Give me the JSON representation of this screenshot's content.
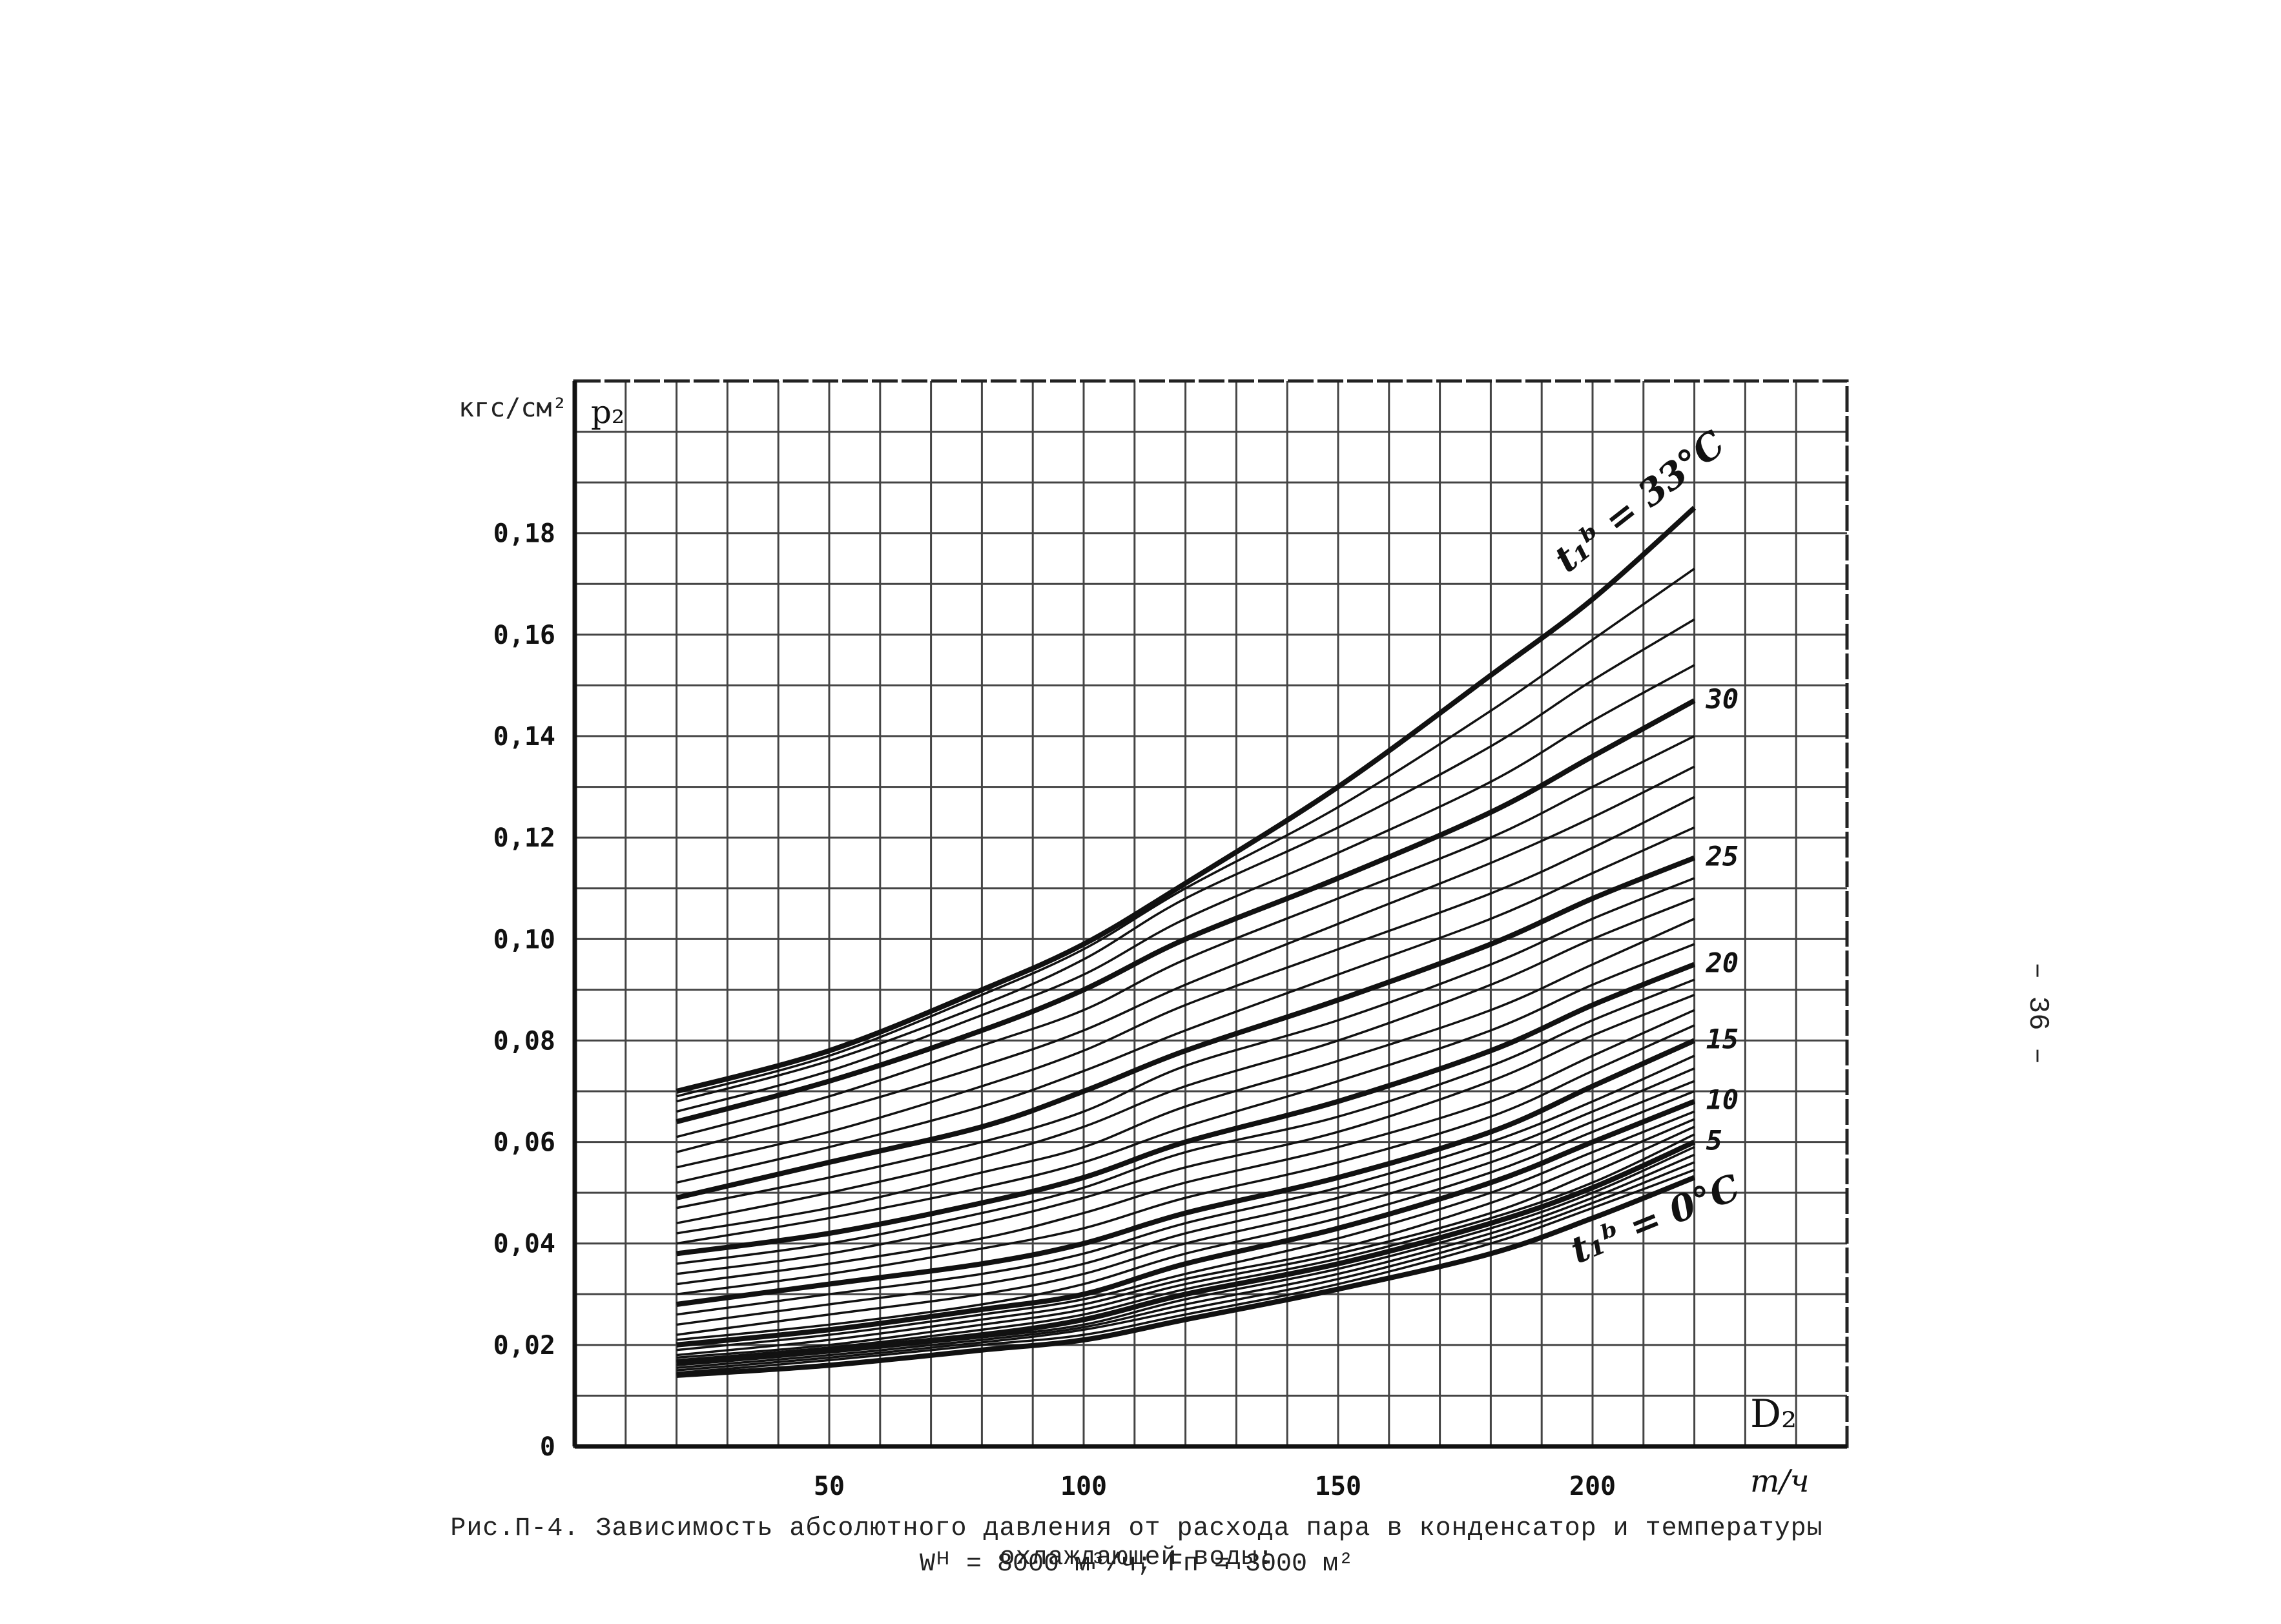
{
  "page": {
    "page_number": "– 36 –",
    "caption_line1": "Рис.П-4. Зависимость абсолютного давления от расхода пара в конденсатор и температуры охлаждающей воды:",
    "caption_line2": "Wᴴ = 8000 м³/ч;  Fп = 3000 м²"
  },
  "chart_data": {
    "type": "line",
    "title": "",
    "ylabel": "p₂",
    "yunit": "кгс/см²",
    "xlabel": "D₂",
    "xunit": "т/ч",
    "xlim": [
      0,
      250
    ],
    "ylim": [
      0,
      0.21
    ],
    "grid": true,
    "x_ticks": [
      {
        "value": 50,
        "label": "50"
      },
      {
        "value": 100,
        "label": "100"
      },
      {
        "value": 150,
        "label": "150"
      },
      {
        "value": 200,
        "label": "200"
      }
    ],
    "y_ticks": [
      {
        "value": 0,
        "label": "0"
      },
      {
        "value": 0.02,
        "label": "0,02"
      },
      {
        "value": 0.04,
        "label": "0,04"
      },
      {
        "value": 0.06,
        "label": "0,06"
      },
      {
        "value": 0.08,
        "label": "0,08"
      },
      {
        "value": 0.1,
        "label": "0,10"
      },
      {
        "value": 0.12,
        "label": "0,12"
      },
      {
        "value": 0.14,
        "label": "0,14"
      },
      {
        "value": 0.16,
        "label": "0,16"
      },
      {
        "value": 0.18,
        "label": "0,18"
      }
    ],
    "x": [
      20,
      50,
      80,
      100,
      120,
      150,
      180,
      200,
      220
    ],
    "series": [
      {
        "name": "t₁ᵇ = 0°C",
        "bold": true,
        "values": [
          0.014,
          0.016,
          0.019,
          0.021,
          0.025,
          0.031,
          0.038,
          0.045,
          0.053
        ]
      },
      {
        "bold": false,
        "values": [
          0.0145,
          0.017,
          0.02,
          0.022,
          0.026,
          0.032,
          0.04,
          0.047,
          0.0545
        ]
      },
      {
        "bold": false,
        "values": [
          0.015,
          0.0175,
          0.0205,
          0.023,
          0.027,
          0.033,
          0.041,
          0.048,
          0.056
        ]
      },
      {
        "bold": false,
        "values": [
          0.0155,
          0.018,
          0.021,
          0.0235,
          0.028,
          0.034,
          0.042,
          0.049,
          0.0575
        ]
      },
      {
        "bold": false,
        "values": [
          0.016,
          0.0185,
          0.0215,
          0.024,
          0.029,
          0.035,
          0.043,
          0.05,
          0.059
        ]
      },
      {
        "name": "5",
        "bold": true,
        "values": [
          0.0165,
          0.019,
          0.022,
          0.025,
          0.03,
          0.036,
          0.044,
          0.051,
          0.06
        ]
      },
      {
        "bold": false,
        "values": [
          0.017,
          0.0195,
          0.023,
          0.026,
          0.031,
          0.037,
          0.045,
          0.052,
          0.0615
        ]
      },
      {
        "bold": false,
        "values": [
          0.0175,
          0.02,
          0.024,
          0.027,
          0.032,
          0.038,
          0.046,
          0.054,
          0.063
        ]
      },
      {
        "bold": false,
        "values": [
          0.018,
          0.021,
          0.025,
          0.028,
          0.033,
          0.039,
          0.048,
          0.056,
          0.0645
        ]
      },
      {
        "bold": false,
        "values": [
          0.019,
          0.022,
          0.026,
          0.029,
          0.034,
          0.041,
          0.05,
          0.058,
          0.066
        ]
      },
      {
        "name": "10",
        "bold": true,
        "values": [
          0.02,
          0.023,
          0.027,
          0.03,
          0.036,
          0.043,
          0.052,
          0.06,
          0.068
        ]
      },
      {
        "bold": false,
        "values": [
          0.021,
          0.024,
          0.028,
          0.032,
          0.038,
          0.045,
          0.054,
          0.062,
          0.07
        ]
      },
      {
        "bold": false,
        "values": [
          0.022,
          0.026,
          0.03,
          0.034,
          0.04,
          0.047,
          0.056,
          0.064,
          0.072
        ]
      },
      {
        "bold": false,
        "values": [
          0.024,
          0.028,
          0.032,
          0.036,
          0.042,
          0.049,
          0.058,
          0.066,
          0.0745
        ]
      },
      {
        "bold": false,
        "values": [
          0.026,
          0.03,
          0.034,
          0.038,
          0.044,
          0.051,
          0.06,
          0.068,
          0.077
        ]
      },
      {
        "name": "15",
        "bold": true,
        "values": [
          0.028,
          0.032,
          0.036,
          0.04,
          0.046,
          0.053,
          0.062,
          0.071,
          0.08
        ]
      },
      {
        "bold": false,
        "values": [
          0.03,
          0.034,
          0.039,
          0.043,
          0.049,
          0.056,
          0.065,
          0.074,
          0.083
        ]
      },
      {
        "bold": false,
        "values": [
          0.032,
          0.036,
          0.041,
          0.046,
          0.052,
          0.059,
          0.068,
          0.077,
          0.086
        ]
      },
      {
        "bold": false,
        "values": [
          0.034,
          0.038,
          0.044,
          0.049,
          0.055,
          0.062,
          0.072,
          0.081,
          0.089
        ]
      },
      {
        "bold": false,
        "values": [
          0.036,
          0.04,
          0.046,
          0.051,
          0.058,
          0.065,
          0.075,
          0.084,
          0.092
        ]
      },
      {
        "name": "20",
        "bold": true,
        "values": [
          0.038,
          0.042,
          0.048,
          0.053,
          0.06,
          0.068,
          0.078,
          0.087,
          0.095
        ]
      },
      {
        "bold": false,
        "values": [
          0.04,
          0.045,
          0.051,
          0.056,
          0.063,
          0.072,
          0.082,
          0.091,
          0.099
        ]
      },
      {
        "bold": false,
        "values": [
          0.042,
          0.047,
          0.054,
          0.059,
          0.067,
          0.076,
          0.086,
          0.095,
          0.104
        ]
      },
      {
        "bold": false,
        "values": [
          0.044,
          0.05,
          0.057,
          0.063,
          0.071,
          0.08,
          0.091,
          0.1,
          0.108
        ]
      },
      {
        "bold": false,
        "values": [
          0.047,
          0.053,
          0.06,
          0.066,
          0.075,
          0.084,
          0.095,
          0.104,
          0.112
        ]
      },
      {
        "name": "25",
        "bold": true,
        "values": [
          0.049,
          0.056,
          0.063,
          0.07,
          0.078,
          0.088,
          0.099,
          0.108,
          0.116
        ]
      },
      {
        "bold": false,
        "values": [
          0.052,
          0.059,
          0.067,
          0.074,
          0.082,
          0.093,
          0.104,
          0.113,
          0.122
        ]
      },
      {
        "bold": false,
        "values": [
          0.055,
          0.062,
          0.071,
          0.078,
          0.087,
          0.098,
          0.109,
          0.118,
          0.128
        ]
      },
      {
        "bold": false,
        "values": [
          0.058,
          0.066,
          0.075,
          0.082,
          0.091,
          0.103,
          0.115,
          0.124,
          0.134
        ]
      },
      {
        "bold": false,
        "values": [
          0.061,
          0.069,
          0.079,
          0.086,
          0.096,
          0.108,
          0.12,
          0.13,
          0.14
        ]
      },
      {
        "name": "30",
        "bold": true,
        "values": [
          0.064,
          0.072,
          0.082,
          0.09,
          0.1,
          0.112,
          0.125,
          0.136,
          0.147
        ]
      },
      {
        "bold": false,
        "values": [
          0.066,
          0.074,
          0.085,
          0.093,
          0.104,
          0.117,
          0.131,
          0.143,
          0.154
        ]
      },
      {
        "bold": false,
        "values": [
          0.068,
          0.076,
          0.087,
          0.096,
          0.108,
          0.122,
          0.138,
          0.151,
          0.163
        ]
      },
      {
        "bold": false,
        "values": [
          0.069,
          0.077,
          0.089,
          0.098,
          0.11,
          0.126,
          0.145,
          0.159,
          0.173
        ]
      },
      {
        "name": "t₁ᵇ = 33°C",
        "bold": true,
        "values": [
          0.07,
          0.078,
          0.09,
          0.099,
          0.111,
          0.13,
          0.152,
          0.167,
          0.185
        ]
      }
    ],
    "annotations": [
      {
        "text": "t₁ᵇ = 33°C"
      },
      {
        "text": "t₁ᵇ = 0°C"
      }
    ]
  }
}
